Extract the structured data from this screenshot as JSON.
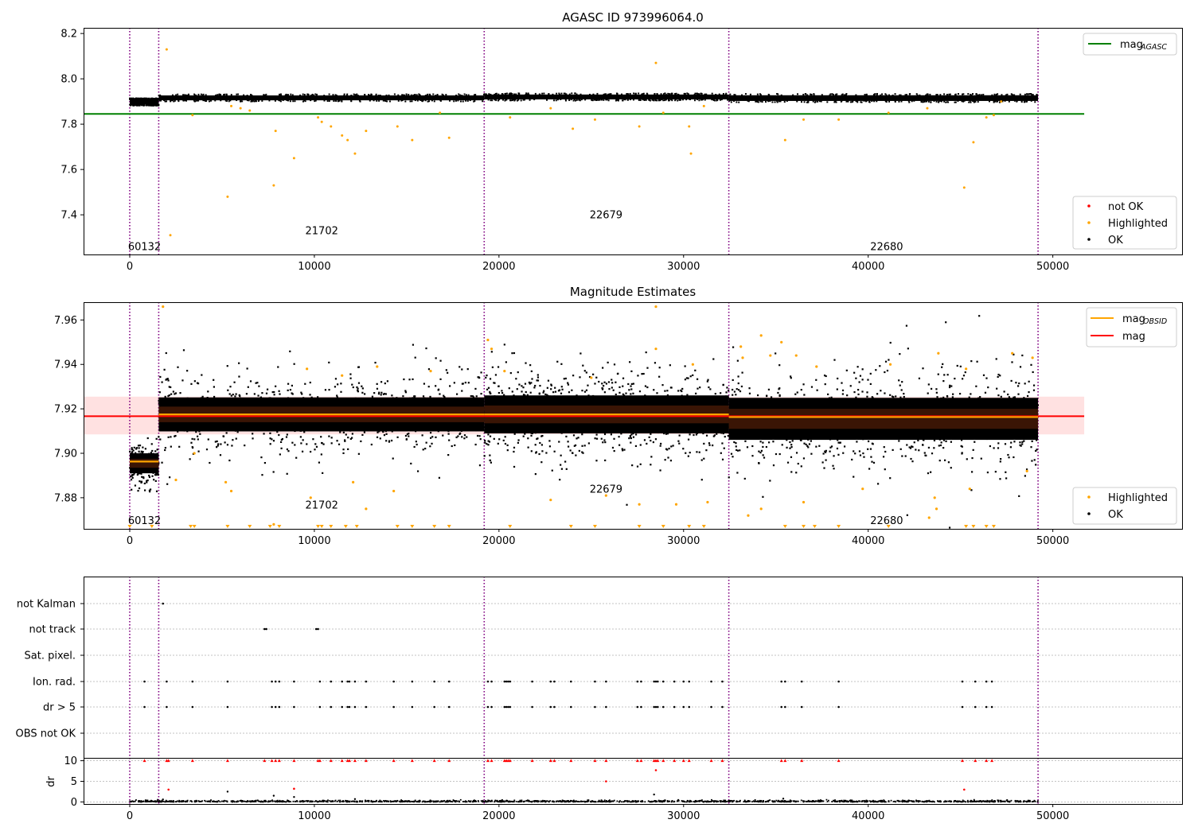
{
  "chart_data": [
    {
      "type": "scatter",
      "title": "AGASC ID 973996064.0",
      "xlim": [
        -2500,
        57000
      ],
      "ylim": [
        7.225,
        8.225
      ],
      "xticks": [
        0,
        10000,
        20000,
        30000,
        40000,
        50000
      ],
      "yticks": [
        7.4,
        7.6,
        7.8,
        8.0,
        8.2
      ],
      "ytick_labels": [
        "7.4",
        "7.6",
        "7.8",
        "8.0",
        "8.2"
      ],
      "obsid_boundaries": [
        0,
        1570,
        19200,
        32450,
        49200
      ],
      "obsid_labels": [
        {
          "text": "60132",
          "x": 800,
          "y": 7.262
        },
        {
          "text": "21702",
          "x": 10400,
          "y": 7.332
        },
        {
          "text": "22679",
          "x": 25800,
          "y": 7.402
        },
        {
          "text": "22680",
          "x": 41000,
          "y": 7.262
        }
      ],
      "mag_agasc": 7.845,
      "mag_agasc_range": [
        -2500,
        51700
      ],
      "ok_bands": [
        {
          "x": [
            0,
            1570
          ],
          "center": 7.898,
          "spread": 0.012
        },
        {
          "x": [
            1570,
            19200
          ],
          "center": 7.916,
          "spread": 0.012
        },
        {
          "x": [
            19200,
            32450
          ],
          "center": 7.92,
          "spread": 0.012
        },
        {
          "x": [
            32450,
            49200
          ],
          "center": 7.915,
          "spread": 0.014
        }
      ],
      "highlighted": [
        [
          2000,
          8.13
        ],
        [
          2200,
          7.31
        ],
        [
          3400,
          7.84
        ],
        [
          5300,
          7.48
        ],
        [
          5500,
          7.88
        ],
        [
          6000,
          7.87
        ],
        [
          6500,
          7.86
        ],
        [
          7800,
          7.53
        ],
        [
          7900,
          7.77
        ],
        [
          8900,
          7.65
        ],
        [
          10200,
          7.83
        ],
        [
          10400,
          7.81
        ],
        [
          10900,
          7.79
        ],
        [
          11500,
          7.75
        ],
        [
          11800,
          7.73
        ],
        [
          12200,
          7.67
        ],
        [
          12800,
          7.77
        ],
        [
          14500,
          7.79
        ],
        [
          15300,
          7.73
        ],
        [
          16800,
          7.85
        ],
        [
          17300,
          7.74
        ],
        [
          20600,
          7.83
        ],
        [
          22800,
          7.87
        ],
        [
          24000,
          7.78
        ],
        [
          25200,
          7.82
        ],
        [
          27600,
          7.79
        ],
        [
          28500,
          8.07
        ],
        [
          28900,
          7.85
        ],
        [
          30300,
          7.79
        ],
        [
          30400,
          7.67
        ],
        [
          31100,
          7.88
        ],
        [
          35500,
          7.73
        ],
        [
          36500,
          7.82
        ],
        [
          38400,
          7.82
        ],
        [
          41100,
          7.85
        ],
        [
          43200,
          7.87
        ],
        [
          45200,
          7.52
        ],
        [
          45700,
          7.72
        ],
        [
          46400,
          7.83
        ],
        [
          46800,
          7.84
        ],
        [
          47200,
          7.9
        ]
      ],
      "legend_top": [
        {
          "label": "mag",
          "sub": "AGASC",
          "color": "#008000"
        }
      ],
      "legend_bottom": [
        {
          "label": "not OK",
          "color": "#ff0000"
        },
        {
          "label": "Highlighted",
          "color": "#ffa500"
        },
        {
          "label": "OK",
          "color": "#000000"
        }
      ]
    },
    {
      "type": "scatter",
      "title": "Magnitude Estimates",
      "xlim": [
        -2500,
        57000
      ],
      "ylim": [
        7.866,
        7.968
      ],
      "xticks": [
        0,
        10000,
        20000,
        30000,
        40000,
        50000
      ],
      "yticks": [
        7.88,
        7.9,
        7.92,
        7.94,
        7.96
      ],
      "ytick_labels": [
        "7.88",
        "7.90",
        "7.92",
        "7.94",
        "7.96"
      ],
      "obsid_boundaries": [
        0,
        1570,
        19200,
        32450,
        49200
      ],
      "obsid_labels": [
        {
          "text": "60132",
          "x": 800,
          "y": 7.87
        },
        {
          "text": "21702",
          "x": 10400,
          "y": 7.877
        },
        {
          "text": "22679",
          "x": 25800,
          "y": 7.884
        },
        {
          "text": "22680",
          "x": 41000,
          "y": 7.87
        }
      ],
      "mag": 7.9167,
      "mag_err": [
        7.9085,
        7.9255
      ],
      "mag_range": [
        -2500,
        51700
      ],
      "mag_obsid": [
        {
          "x": [
            0,
            1570
          ],
          "y": 7.8963
        },
        {
          "x": [
            1570,
            19200
          ],
          "y": 7.9175
        },
        {
          "x": [
            19200,
            32450
          ],
          "y": 7.9175
        },
        {
          "x": [
            32450,
            49200
          ],
          "y": 7.9163
        }
      ],
      "ok_bands": [
        {
          "x": [
            0,
            1570
          ],
          "center": 7.8955,
          "spread": 0.005,
          "core": 0.002
        },
        {
          "x": [
            1570,
            19200
          ],
          "center": 7.9175,
          "spread": 0.0085,
          "core": 0.0035
        },
        {
          "x": [
            19200,
            32450
          ],
          "center": 7.9175,
          "spread": 0.0095,
          "core": 0.004
        },
        {
          "x": [
            32450,
            49200
          ],
          "center": 7.9155,
          "spread": 0.0105,
          "core": 0.0045
        }
      ],
      "highlighted": [
        [
          1800,
          7.966
        ],
        [
          19400,
          7.951
        ],
        [
          19600,
          7.947
        ],
        [
          28500,
          7.966
        ],
        [
          28500,
          7.947
        ],
        [
          33100,
          7.948
        ],
        [
          33200,
          7.943
        ],
        [
          34200,
          7.953
        ],
        [
          34700,
          7.944
        ],
        [
          35300,
          7.95
        ],
        [
          36100,
          7.944
        ],
        [
          43800,
          7.945
        ],
        [
          47800,
          7.945
        ],
        [
          48900,
          7.943
        ],
        [
          2500,
          7.888
        ],
        [
          3500,
          7.9
        ],
        [
          5200,
          7.887
        ],
        [
          5500,
          7.883
        ],
        [
          7800,
          7.868
        ],
        [
          9800,
          7.88
        ],
        [
          12100,
          7.887
        ],
        [
          12800,
          7.875
        ],
        [
          14300,
          7.883
        ],
        [
          22800,
          7.879
        ],
        [
          25800,
          7.881
        ],
        [
          27600,
          7.877
        ],
        [
          29600,
          7.877
        ],
        [
          31300,
          7.878
        ],
        [
          33500,
          7.872
        ],
        [
          34200,
          7.875
        ],
        [
          36500,
          7.878
        ],
        [
          39700,
          7.884
        ],
        [
          43300,
          7.871
        ],
        [
          43600,
          7.88
        ],
        [
          43700,
          7.875
        ],
        [
          45500,
          7.884
        ],
        [
          48600,
          7.892
        ],
        [
          9600,
          7.938
        ],
        [
          11500,
          7.935
        ],
        [
          13400,
          7.939
        ],
        [
          16300,
          7.937
        ],
        [
          20300,
          7.937
        ],
        [
          25000,
          7.934
        ],
        [
          30500,
          7.94
        ],
        [
          37200,
          7.939
        ],
        [
          41200,
          7.94
        ],
        [
          45300,
          7.938
        ]
      ],
      "clipped_low": [
        0,
        1200,
        3300,
        3500,
        5300,
        6500,
        7600,
        8100,
        10200,
        10400,
        10900,
        11700,
        12300,
        14500,
        15300,
        16500,
        17300,
        20600,
        23900,
        25200,
        27600,
        28900,
        30300,
        31100,
        35500,
        36500,
        37100,
        38400,
        41100,
        45300,
        45700,
        46400,
        46800
      ],
      "legend_top": [
        {
          "label": "mag",
          "sub": "OBSID",
          "color": "#ffa500"
        },
        {
          "label": "mag",
          "sub": "",
          "color": "#ff0000"
        }
      ],
      "legend_bottom": [
        {
          "label": "Highlighted",
          "color": "#ffa500"
        },
        {
          "label": "OK",
          "color": "#000000"
        }
      ]
    },
    {
      "type": "scatter",
      "xlim": [
        -2500,
        57000
      ],
      "xticks": [
        0,
        10000,
        20000,
        30000,
        40000,
        50000
      ],
      "obsid_boundaries": [
        0,
        1570,
        19200,
        32450,
        49200
      ],
      "flag_rows": [
        "not Kalman",
        "not track",
        "Sat. pixel.",
        "Ion. rad.",
        "dr > 5",
        "OBS not OK"
      ],
      "flags": {
        "not Kalman": [
          1800
        ],
        "not track": [
          7300,
          7400,
          10100,
          10200
        ],
        "Sat. pixel.": [],
        "Ion. rad.": [
          800,
          2000,
          3400,
          5300,
          7700,
          7900,
          8100,
          8900,
          10300,
          10900,
          11500,
          11800,
          11900,
          12200,
          12800,
          14300,
          15300,
          16500,
          17300,
          19400,
          19600,
          20300,
          20400,
          20500,
          20600,
          21800,
          22800,
          23000,
          23900,
          25200,
          25800,
          27500,
          27700,
          28400,
          28500,
          28600,
          28900,
          29500,
          30000,
          30300,
          31500,
          32100,
          35300,
          35500,
          36400,
          38400,
          45100,
          45800,
          46400,
          46700
        ],
        "dr > 5": [
          800,
          2000,
          3400,
          5300,
          7700,
          7900,
          8100,
          8900,
          10300,
          10900,
          11500,
          11800,
          11900,
          12200,
          12800,
          14300,
          15300,
          16500,
          17300,
          19400,
          19600,
          20300,
          20400,
          20500,
          20600,
          21800,
          22800,
          23000,
          23900,
          25200,
          25800,
          27500,
          27700,
          28400,
          28500,
          28600,
          28900,
          29500,
          30000,
          30300,
          31500,
          32100,
          35300,
          35500,
          36400,
          38400,
          45100,
          45800,
          46400,
          46700
        ],
        "OBS not OK": []
      },
      "dr": {
        "ylabel": "dr",
        "ylim": [
          -0.5,
          10.5
        ],
        "yticks": [
          0,
          5,
          10
        ],
        "ytick_labels": [
          "0",
          "5",
          "10"
        ],
        "clipped_high": [
          800,
          2000,
          2100,
          3400,
          5300,
          7300,
          7700,
          7900,
          8100,
          8900,
          10200,
          10300,
          10900,
          11500,
          11800,
          11900,
          12200,
          12800,
          14300,
          15300,
          16500,
          17300,
          19400,
          19600,
          20300,
          20400,
          20500,
          20600,
          21800,
          22800,
          23000,
          23900,
          25200,
          25800,
          27500,
          27700,
          28400,
          28500,
          28600,
          28900,
          29500,
          30000,
          30300,
          31500,
          32100,
          35300,
          35500,
          36400,
          38400,
          45100,
          45800,
          46400,
          46700
        ],
        "outliers_red": [
          [
            28500,
            7.7
          ],
          [
            2100,
            3
          ],
          [
            8900,
            3.2
          ],
          [
            25800,
            5
          ],
          [
            45200,
            3
          ]
        ],
        "outliers_black": [
          [
            5300,
            2.5
          ],
          [
            7800,
            1.5
          ],
          [
            8900,
            1.2
          ],
          [
            28400,
            1.8
          ],
          [
            35400,
            0.8
          ],
          [
            12200,
            0.7
          ],
          [
            1800,
            0.6
          ]
        ]
      }
    }
  ]
}
